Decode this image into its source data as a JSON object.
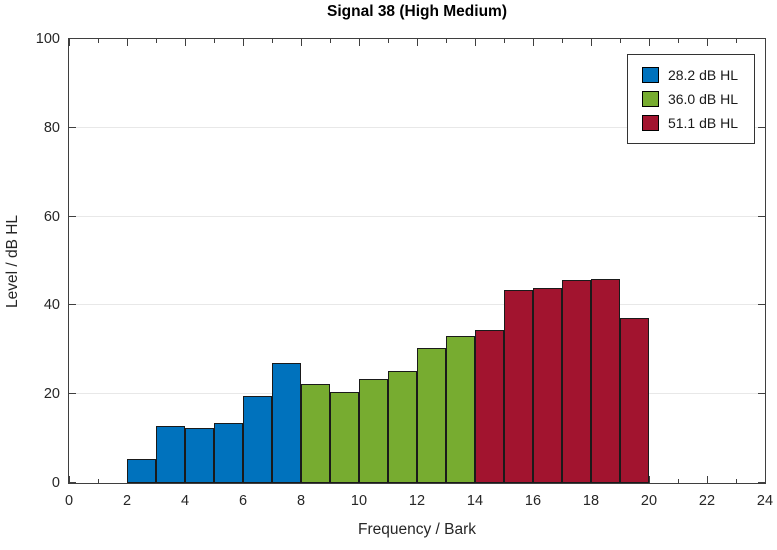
{
  "title": "Signal 38 (High Medium)",
  "legend": {
    "items": [
      {
        "label": "28.2 dB HL",
        "color": "#0072BD"
      },
      {
        "label": "36.0 dB HL",
        "color": "#77AC30"
      },
      {
        "label": "51.1 dB HL",
        "color": "#A2142F"
      }
    ],
    "position": "top-right"
  },
  "chart_data": {
    "type": "bar",
    "title": "Signal 38 (High Medium)",
    "xlabel": "Frequency / Bark",
    "ylabel": "Level / dB HL",
    "xlim": [
      0,
      24
    ],
    "ylim": [
      0,
      100
    ],
    "x_major_ticks": [
      0,
      2,
      4,
      6,
      8,
      10,
      12,
      14,
      16,
      18,
      20,
      22,
      24
    ],
    "x_minor_ticks": [
      1,
      3,
      5,
      7,
      9,
      11,
      13,
      15,
      17,
      19,
      21,
      23
    ],
    "y_ticks": [
      0,
      20,
      40,
      60,
      80,
      100
    ],
    "grid": "horizontal-only",
    "bar_unit_width_bark": 1,
    "series": [
      {
        "name": "28.2 dB HL",
        "color": "#0072BD",
        "x_start": 2,
        "values": [
          5.4,
          12.9,
          12.4,
          13.6,
          19.5,
          27.0
        ]
      },
      {
        "name": "36.0 dB HL",
        "color": "#77AC30",
        "x_start": 8,
        "values": [
          22.2,
          20.4,
          23.5,
          25.3,
          30.5,
          33.0
        ]
      },
      {
        "name": "51.1 dB HL",
        "color": "#A2142F",
        "x_start": 14,
        "values": [
          34.5,
          43.4,
          44.0,
          45.8,
          46.0,
          37.2
        ]
      }
    ],
    "colors": {
      "grid": "#e8e8e8",
      "axis_frame": "#3f3f3f",
      "bar_edge": "#1a1a1a",
      "tick_text": "#262626"
    }
  }
}
